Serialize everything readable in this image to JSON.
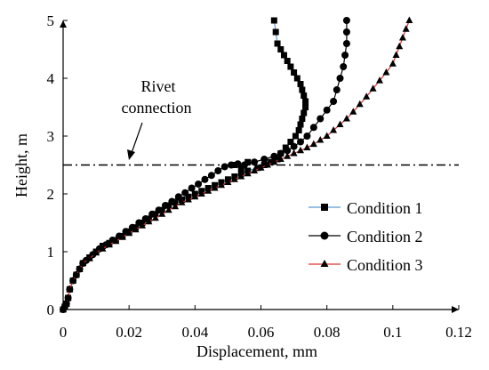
{
  "chart_data": {
    "type": "line",
    "xlabel": "Displacement, mm",
    "ylabel": "Height, m",
    "xlim": [
      0,
      0.12
    ],
    "ylim": [
      0,
      5
    ],
    "xticks": [
      "0",
      "0.02",
      "0.04",
      "0.06",
      "0.08",
      "0.1",
      "0.12"
    ],
    "yticks": [
      "0",
      "1",
      "2",
      "3",
      "4",
      "5"
    ],
    "grid": false,
    "legend_position": "right",
    "annotation": {
      "text_line1": "Rivet",
      "text_line2": "connection",
      "reference_y": 2.5
    },
    "series": [
      {
        "name": "Condition 1",
        "marker": "square",
        "line_color": "#5b9bd5",
        "marker_color": "#000000",
        "x": [
          0.0,
          0.0005,
          0.001,
          0.0015,
          0.002,
          0.003,
          0.004,
          0.005,
          0.006,
          0.008,
          0.01,
          0.012,
          0.014,
          0.016,
          0.018,
          0.02,
          0.022,
          0.024,
          0.026,
          0.028,
          0.03,
          0.032,
          0.034,
          0.036,
          0.038,
          0.04,
          0.042,
          0.044,
          0.046,
          0.048,
          0.05,
          0.052,
          0.054,
          0.056,
          0.059,
          0.061,
          0.063,
          0.065,
          0.066,
          0.0675,
          0.069,
          0.0705,
          0.0715,
          0.072,
          0.0725,
          0.073,
          0.0735,
          0.0735,
          0.073,
          0.0725,
          0.072,
          0.071,
          0.07,
          0.069,
          0.068,
          0.067,
          0.066,
          0.065,
          0.0645,
          0.064
        ],
        "y": [
          0.0,
          0.05,
          0.1,
          0.2,
          0.35,
          0.5,
          0.6,
          0.7,
          0.8,
          0.9,
          1.0,
          1.1,
          1.15,
          1.2,
          1.27,
          1.35,
          1.42,
          1.5,
          1.57,
          1.65,
          1.72,
          1.8,
          1.85,
          1.9,
          1.95,
          2.0,
          2.05,
          2.1,
          2.15,
          2.2,
          2.25,
          2.3,
          2.35,
          2.4,
          2.45,
          2.5,
          2.55,
          2.6,
          2.7,
          2.8,
          2.9,
          3.0,
          3.1,
          3.2,
          3.3,
          3.4,
          3.5,
          3.6,
          3.7,
          3.8,
          3.9,
          4.0,
          4.1,
          4.2,
          4.3,
          4.4,
          4.5,
          4.6,
          4.8,
          5.0
        ],
        "rivet_points_x": [
          0.052,
          0.054,
          0.056
        ],
        "rivet_points_y": [
          2.5,
          2.45,
          2.55
        ]
      },
      {
        "name": "Condition 2",
        "marker": "circle",
        "line_color": "#000000",
        "marker_color": "#000000",
        "x": [
          0.0,
          0.0005,
          0.001,
          0.0015,
          0.002,
          0.003,
          0.004,
          0.005,
          0.006,
          0.007,
          0.009,
          0.011,
          0.013,
          0.015,
          0.017,
          0.019,
          0.021,
          0.023,
          0.025,
          0.027,
          0.029,
          0.031,
          0.033,
          0.035,
          0.037,
          0.039,
          0.041,
          0.043,
          0.045,
          0.047,
          0.049,
          0.051,
          0.053,
          0.055,
          0.058,
          0.061,
          0.064,
          0.066,
          0.068,
          0.07,
          0.072,
          0.074,
          0.076,
          0.078,
          0.08,
          0.082,
          0.083,
          0.084,
          0.085,
          0.0855,
          0.086,
          0.086,
          0.086
        ],
        "y": [
          0.0,
          0.05,
          0.1,
          0.2,
          0.35,
          0.5,
          0.6,
          0.7,
          0.8,
          0.85,
          0.95,
          1.05,
          1.12,
          1.2,
          1.27,
          1.35,
          1.42,
          1.5,
          1.57,
          1.65,
          1.72,
          1.8,
          1.87,
          1.95,
          2.02,
          2.1,
          2.17,
          2.25,
          2.32,
          2.4,
          2.47,
          2.5,
          2.52,
          2.5,
          2.55,
          2.6,
          2.65,
          2.7,
          2.75,
          2.82,
          2.9,
          3.0,
          3.15,
          3.3,
          3.45,
          3.6,
          3.8,
          4.0,
          4.2,
          4.4,
          4.6,
          4.8,
          5.0
        ]
      },
      {
        "name": "Condition 3",
        "marker": "triangle",
        "line_color": "#e03030",
        "marker_color": "#000000",
        "x": [
          0.0,
          0.0005,
          0.001,
          0.0015,
          0.002,
          0.003,
          0.004,
          0.005,
          0.006,
          0.008,
          0.01,
          0.012,
          0.014,
          0.016,
          0.018,
          0.02,
          0.022,
          0.024,
          0.026,
          0.028,
          0.03,
          0.032,
          0.034,
          0.036,
          0.038,
          0.04,
          0.042,
          0.044,
          0.046,
          0.048,
          0.05,
          0.052,
          0.054,
          0.056,
          0.058,
          0.06,
          0.062,
          0.064,
          0.066,
          0.068,
          0.07,
          0.072,
          0.074,
          0.076,
          0.078,
          0.08,
          0.082,
          0.084,
          0.086,
          0.088,
          0.09,
          0.092,
          0.094,
          0.096,
          0.098,
          0.1,
          0.101,
          0.102,
          0.103,
          0.104,
          0.105
        ],
        "y": [
          0.0,
          0.05,
          0.1,
          0.2,
          0.35,
          0.5,
          0.6,
          0.7,
          0.8,
          0.88,
          0.98,
          1.05,
          1.12,
          1.18,
          1.25,
          1.32,
          1.38,
          1.45,
          1.52,
          1.58,
          1.65,
          1.72,
          1.78,
          1.85,
          1.9,
          1.95,
          2.0,
          2.05,
          2.1,
          2.15,
          2.2,
          2.25,
          2.3,
          2.35,
          2.4,
          2.45,
          2.5,
          2.55,
          2.6,
          2.65,
          2.7,
          2.75,
          2.8,
          2.86,
          2.93,
          3.0,
          3.1,
          3.2,
          3.3,
          3.42,
          3.55,
          3.68,
          3.82,
          3.96,
          4.1,
          4.25,
          4.4,
          4.55,
          4.7,
          4.85,
          5.0
        ]
      }
    ]
  }
}
